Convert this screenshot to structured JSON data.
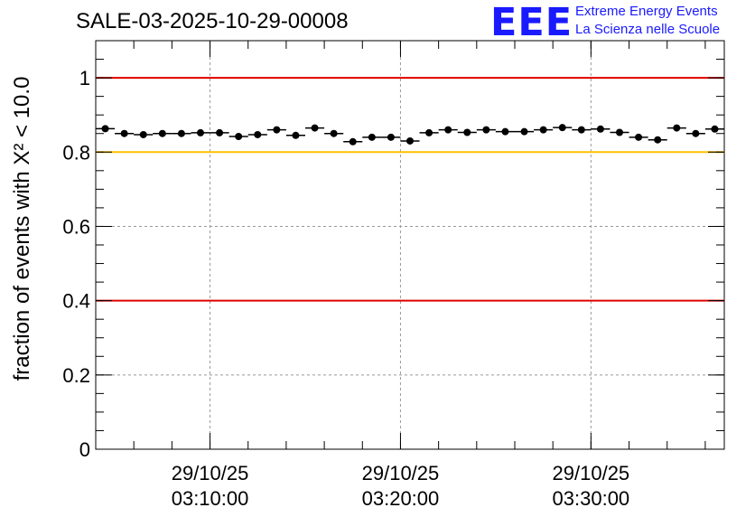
{
  "header": {
    "title": "SALE-03-2025-10-29-00008",
    "logo_mark": "EEE",
    "logo_line1": "Extreme Energy Events",
    "logo_line2": "La Scienza nelle Scuole"
  },
  "colors": {
    "threshold_high": "#e00000",
    "threshold_mid": "#ffc000",
    "markers": "#000000",
    "grid": "#999999",
    "logo": "#1a1aff"
  },
  "chart_data": {
    "type": "scatter",
    "title": "SALE-03-2025-10-29-00008",
    "ylabel": "fraction of events with X² < 10.0",
    "xlabel": "",
    "ylim": [
      0,
      1.1
    ],
    "xlim_minutes": [
      0,
      33
    ],
    "grid": true,
    "yticks": [
      {
        "value": 0,
        "label": "0"
      },
      {
        "value": 0.2,
        "label": "0.2"
      },
      {
        "value": 0.4,
        "label": "0.4"
      },
      {
        "value": 0.6,
        "label": "0.6"
      },
      {
        "value": 0.8,
        "label": "0.8"
      },
      {
        "value": 1,
        "label": "1"
      }
    ],
    "xticks": [
      {
        "value": 6,
        "date": "29/10/25",
        "time": "03:10:00"
      },
      {
        "value": 16,
        "date": "29/10/25",
        "time": "03:20:00"
      },
      {
        "value": 26,
        "date": "29/10/25",
        "time": "03:30:00"
      }
    ],
    "x_bin_width_minutes": 1,
    "x": [
      0,
      1,
      2,
      3,
      4,
      5,
      6,
      7,
      8,
      9,
      10,
      11,
      12,
      13,
      14,
      15,
      16,
      17,
      18,
      19,
      20,
      21,
      22,
      23,
      24,
      25,
      26,
      27,
      28,
      29,
      30,
      31,
      32
    ],
    "values": [
      0.863,
      0.85,
      0.847,
      0.85,
      0.85,
      0.852,
      0.852,
      0.842,
      0.847,
      0.86,
      0.845,
      0.865,
      0.85,
      0.828,
      0.84,
      0.84,
      0.83,
      0.852,
      0.86,
      0.853,
      0.86,
      0.855,
      0.855,
      0.86,
      0.866,
      0.86,
      0.862,
      0.853,
      0.84,
      0.833,
      0.865,
      0.85,
      0.862
    ],
    "reference_lines": [
      {
        "value": 1.0,
        "color": "#e00000"
      },
      {
        "value": 0.8,
        "color": "#ffc000"
      },
      {
        "value": 0.4,
        "color": "#e00000"
      }
    ]
  }
}
